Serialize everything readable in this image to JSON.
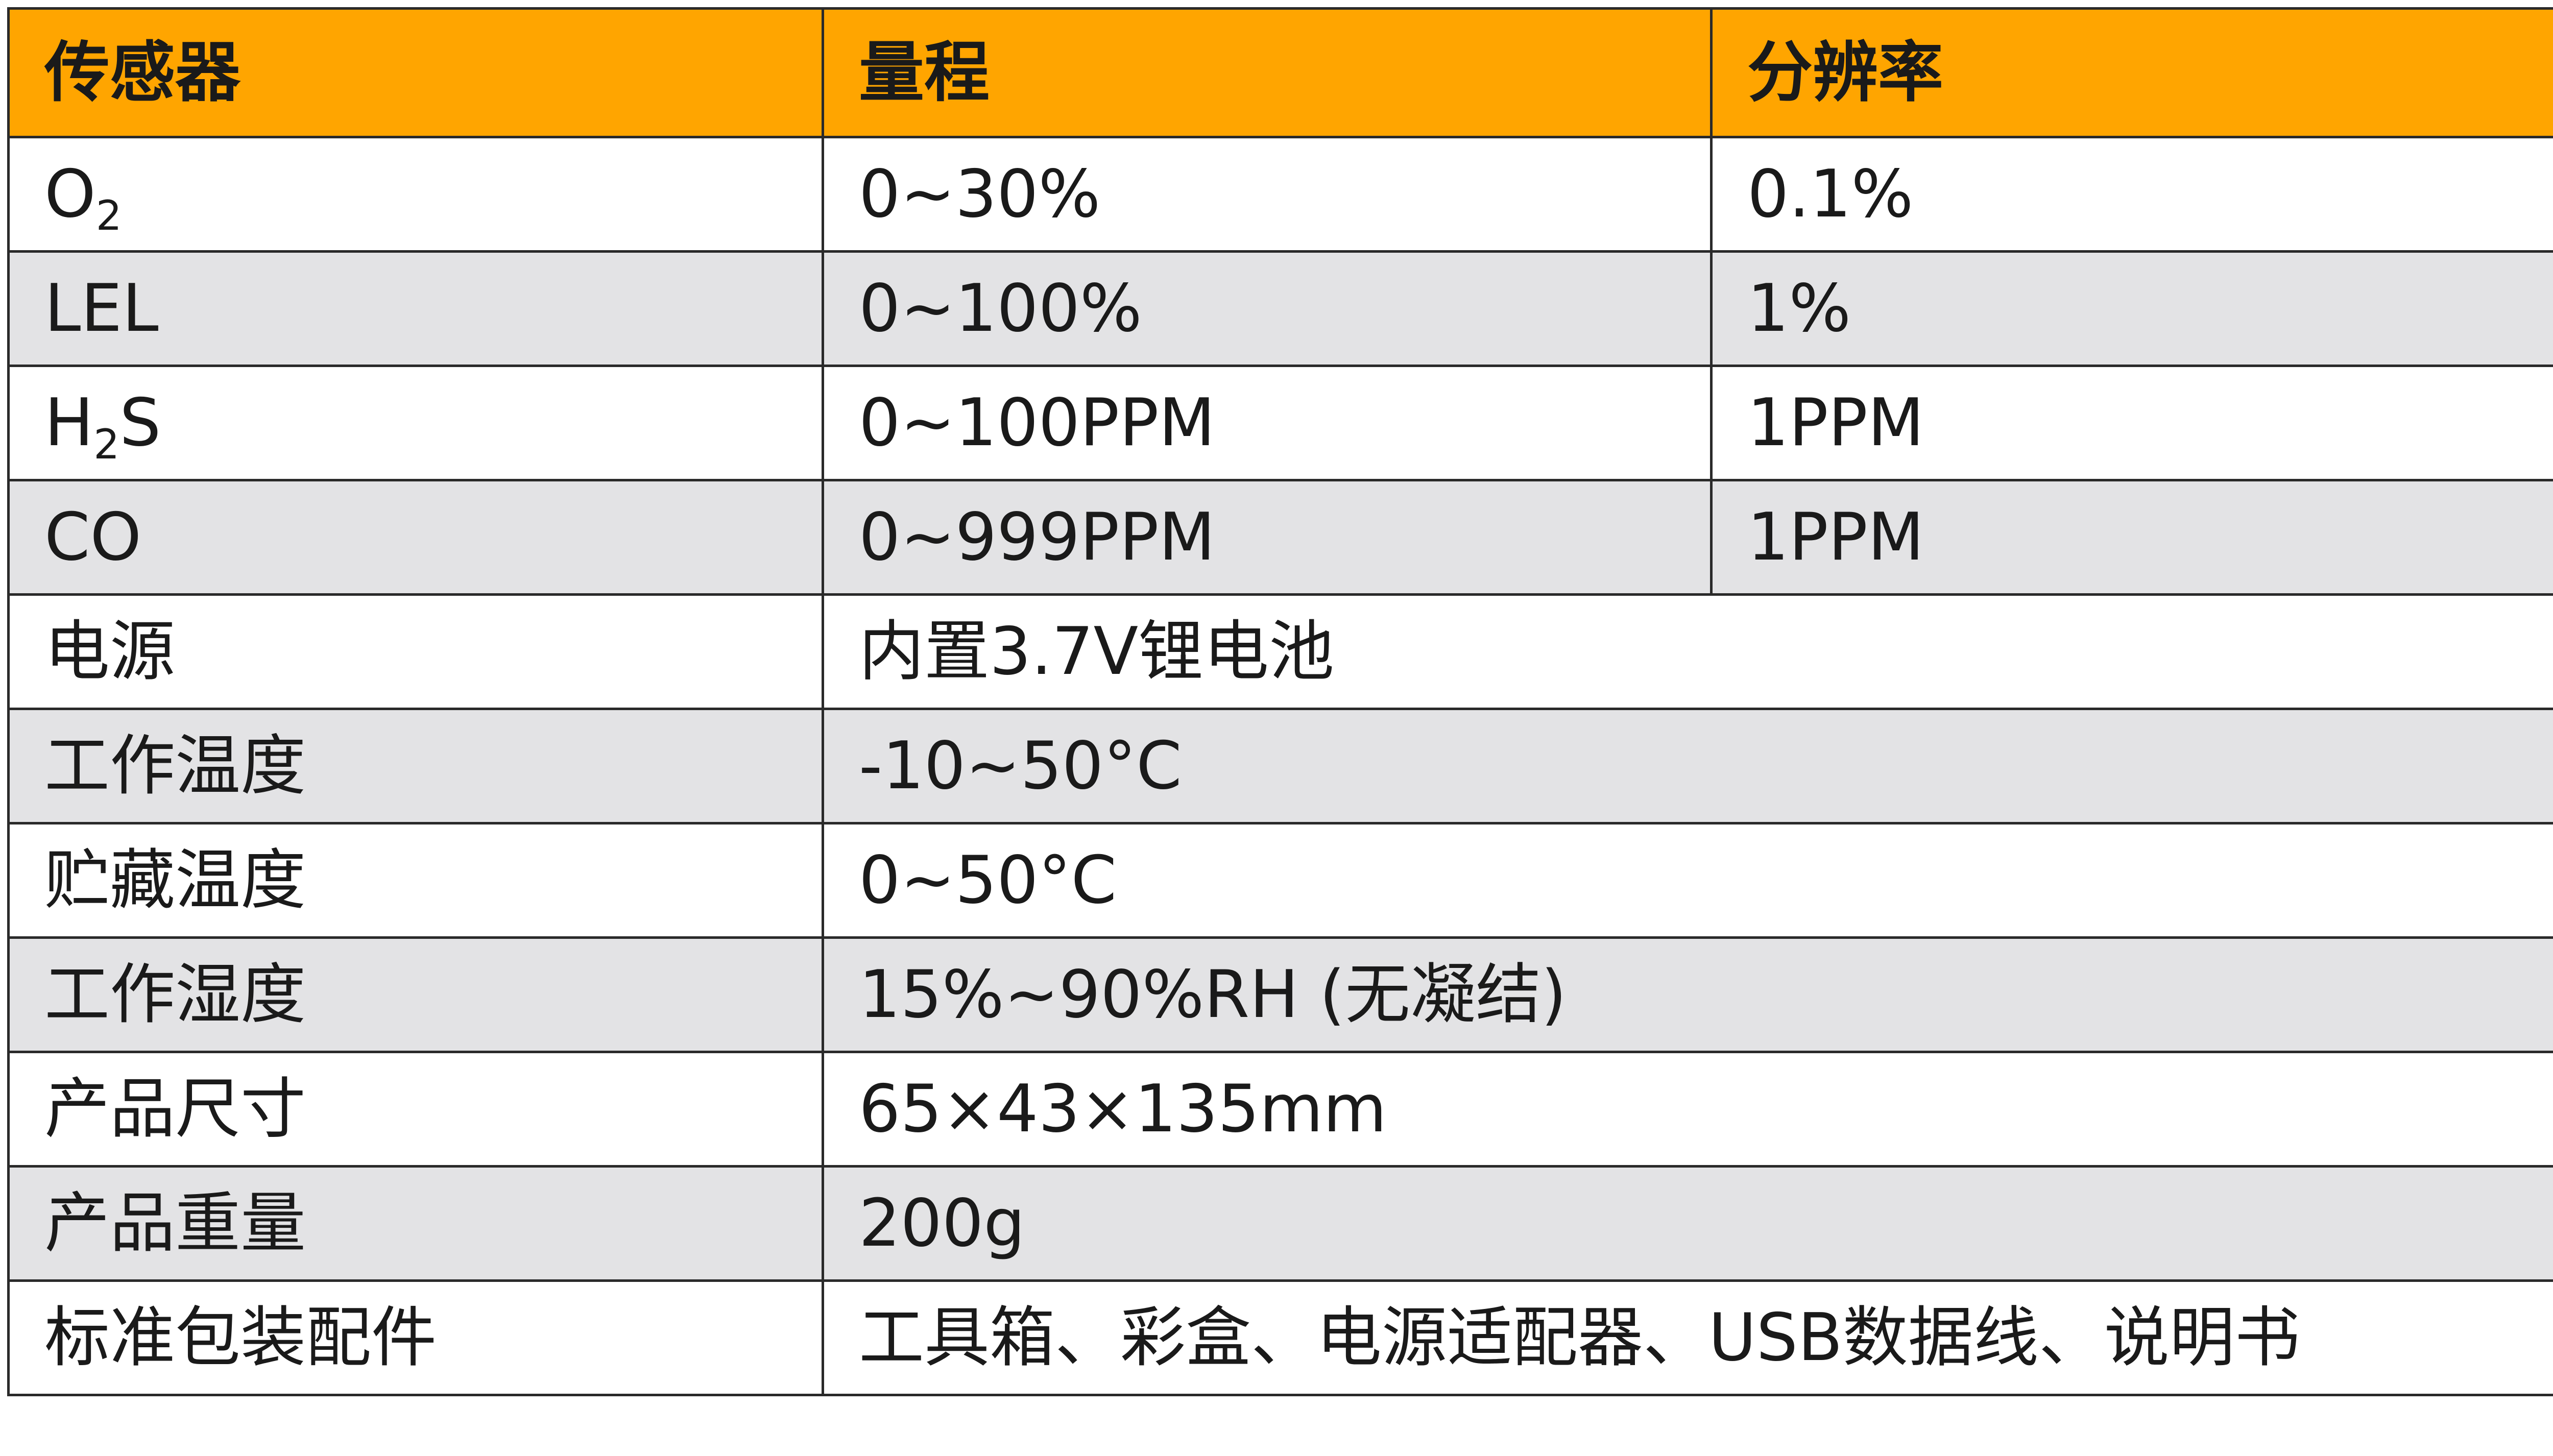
{
  "header": {
    "col1": "传感器",
    "col2": "量程",
    "col3": "分辨率"
  },
  "sensors": [
    {
      "name_base": "O",
      "name_sub": "2",
      "name_tail": "",
      "range": "0~30%",
      "resolution": "0.1%"
    },
    {
      "name_base": "LEL",
      "name_sub": "",
      "name_tail": "",
      "range": "0~100%",
      "resolution": "1%"
    },
    {
      "name_base": "H",
      "name_sub": "2",
      "name_tail": "S",
      "range": "0~100PPM",
      "resolution": "1PPM"
    },
    {
      "name_base": "CO",
      "name_sub": "",
      "name_tail": "",
      "range": "0~999PPM",
      "resolution": "1PPM"
    }
  ],
  "specs": [
    {
      "label": "电源",
      "value": "内置3.7V锂电池"
    },
    {
      "label": "工作温度",
      "value": "-10~50°C"
    },
    {
      "label": "贮藏温度",
      "value": "0~50°C"
    },
    {
      "label": "工作湿度",
      "value": "15%~90%RH (无凝结)"
    },
    {
      "label": "产品尺寸",
      "value": "65×43×135mm"
    },
    {
      "label": "产品重量",
      "value": "200g"
    },
    {
      "label": "标准包装配件",
      "value": "工具箱、彩盒、电源适配器、USB数据线、说明书"
    }
  ],
  "colors": {
    "header_bg": "#ffa500",
    "shade_row_bg": "#e3e3e5",
    "plain_row_bg": "#ffffff",
    "border": "#2a2a2a"
  }
}
